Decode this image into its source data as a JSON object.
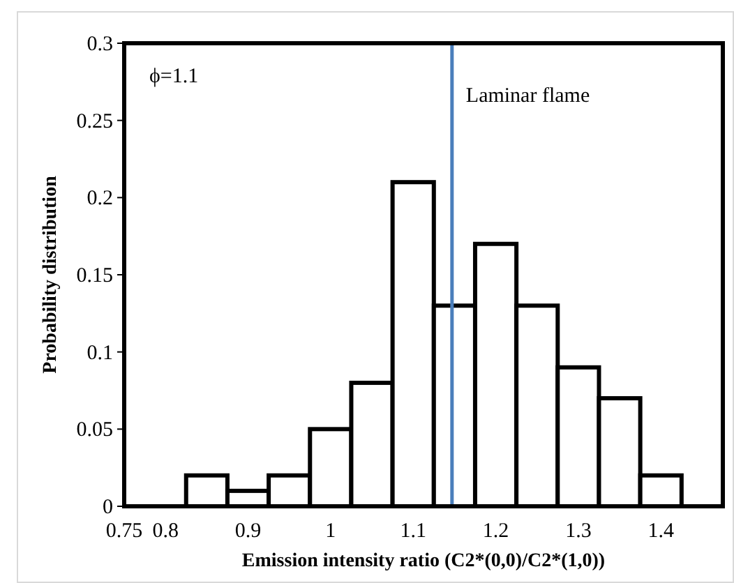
{
  "chart_data": {
    "type": "histogram",
    "xlabel": "Emission intensity ratio (C2*(0,0)/C2*(1,0))",
    "ylabel": "Probability distribution",
    "bins": [
      0.825,
      0.875,
      0.925,
      0.975,
      1.025,
      1.075,
      1.125,
      1.175,
      1.225,
      1.275,
      1.325,
      1.375,
      1.425
    ],
    "values": [
      0.02,
      0.01,
      0.02,
      0.05,
      0.08,
      0.21,
      0.13,
      0.17,
      0.13,
      0.09,
      0.07,
      0.02
    ],
    "color": "#ffffff",
    "xlim": [
      0.75,
      1.475
    ],
    "xticks": [
      0.75,
      0.8,
      0.9,
      1,
      1.1,
      1.2,
      1.3,
      1.4
    ],
    "ylim": [
      0,
      0.3
    ],
    "yticks": [
      0,
      0.05,
      0.1,
      0.15,
      0.2,
      0.25,
      0.3
    ],
    "ref_lines": [
      {
        "axis": "x",
        "value": 1.147,
        "label": "Laminar flame",
        "color": "#4a7ebb"
      }
    ],
    "annotations": [
      "ϕ=1.1"
    ],
    "grid": false
  }
}
